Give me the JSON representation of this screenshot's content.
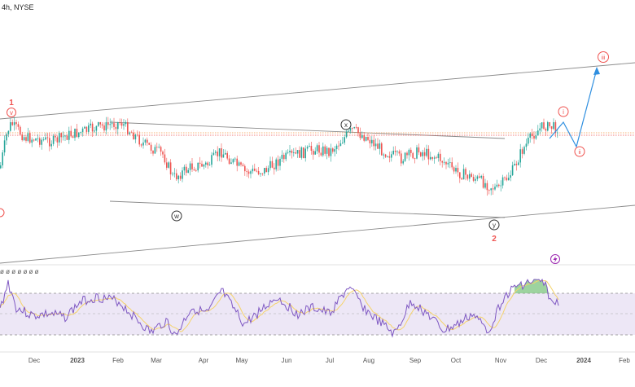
{
  "header": {
    "label": "4h, NYSE"
  },
  "colors": {
    "up": "#26a69a",
    "down": "#ef5350",
    "wave_red": "#ef5350",
    "wave_dark": "#333333",
    "projection": "#2f8fe0",
    "rsi_line": "#7e57c2",
    "rsi_ma": "#f5d36b",
    "rsi_band": "#ede7f6",
    "trendline": "#8a8a8a",
    "price_line": "#f2994a",
    "overbought_fill": "#7cc47f",
    "bolt": "#9c27b0"
  },
  "wave_labels": {
    "one": "1",
    "v": "v",
    "x": "x",
    "w": "w",
    "y": "y",
    "two": "2",
    "i": "i",
    "ii": "ii",
    "iii": "iii"
  },
  "rsi_header": {
    "values": "ø ø ø ø ø ø ø"
  },
  "icons": {
    "bolt": "lightning-icon"
  },
  "chart_data": {
    "type": "candlestick",
    "title": "4h, NYSE",
    "x_ticks": [
      "Dec",
      "2023",
      "Feb",
      "Mar",
      "Apr",
      "May",
      "Jun",
      "Jul",
      "Aug",
      "Sep",
      "Oct",
      "Nov",
      "Dec",
      "2024",
      "Feb"
    ],
    "price_path": [
      {
        "x": 0,
        "y": 0.45
      },
      {
        "x": 8,
        "y": 0.1
      },
      {
        "x": 13,
        "y": 0.01
      },
      {
        "x": 30,
        "y": 0.16
      },
      {
        "x": 65,
        "y": 0.2
      },
      {
        "x": 80,
        "y": 0.14
      },
      {
        "x": 100,
        "y": 0.1
      },
      {
        "x": 120,
        "y": 0.05
      },
      {
        "x": 148,
        "y": 0.0
      },
      {
        "x": 175,
        "y": 0.22
      },
      {
        "x": 200,
        "y": 0.34
      },
      {
        "x": 212,
        "y": 0.58
      },
      {
        "x": 235,
        "y": 0.46
      },
      {
        "x": 255,
        "y": 0.44
      },
      {
        "x": 270,
        "y": 0.3
      },
      {
        "x": 300,
        "y": 0.52
      },
      {
        "x": 325,
        "y": 0.5
      },
      {
        "x": 345,
        "y": 0.38
      },
      {
        "x": 362,
        "y": 0.34
      },
      {
        "x": 385,
        "y": 0.28
      },
      {
        "x": 405,
        "y": 0.3
      },
      {
        "x": 432,
        "y": 0.08
      },
      {
        "x": 450,
        "y": 0.16
      },
      {
        "x": 470,
        "y": 0.3
      },
      {
        "x": 492,
        "y": 0.38
      },
      {
        "x": 515,
        "y": 0.3
      },
      {
        "x": 540,
        "y": 0.38
      },
      {
        "x": 560,
        "y": 0.52
      },
      {
        "x": 582,
        "y": 0.58
      },
      {
        "x": 610,
        "y": 0.7
      },
      {
        "x": 628,
        "y": 0.52
      },
      {
        "x": 640,
        "y": 0.3
      },
      {
        "x": 655,
        "y": 0.12
      },
      {
        "x": 668,
        "y": 0.03
      },
      {
        "x": 685,
        "y": 0.06
      }
    ],
    "rsi_path": [
      {
        "x": 0,
        "y": 0.48
      },
      {
        "x": 10,
        "y": 0.05
      },
      {
        "x": 20,
        "y": 0.45
      },
      {
        "x": 40,
        "y": 0.58
      },
      {
        "x": 60,
        "y": 0.55
      },
      {
        "x": 80,
        "y": 0.6
      },
      {
        "x": 100,
        "y": 0.35
      },
      {
        "x": 120,
        "y": 0.28
      },
      {
        "x": 145,
        "y": 0.35
      },
      {
        "x": 165,
        "y": 0.6
      },
      {
        "x": 185,
        "y": 0.85
      },
      {
        "x": 205,
        "y": 0.65
      },
      {
        "x": 215,
        "y": 0.92
      },
      {
        "x": 235,
        "y": 0.45
      },
      {
        "x": 255,
        "y": 0.55
      },
      {
        "x": 272,
        "y": 0.18
      },
      {
        "x": 300,
        "y": 0.72
      },
      {
        "x": 320,
        "y": 0.5
      },
      {
        "x": 340,
        "y": 0.28
      },
      {
        "x": 365,
        "y": 0.55
      },
      {
        "x": 385,
        "y": 0.45
      },
      {
        "x": 405,
        "y": 0.55
      },
      {
        "x": 428,
        "y": 0.12
      },
      {
        "x": 450,
        "y": 0.5
      },
      {
        "x": 468,
        "y": 0.7
      },
      {
        "x": 485,
        "y": 0.88
      },
      {
        "x": 505,
        "y": 0.35
      },
      {
        "x": 525,
        "y": 0.55
      },
      {
        "x": 545,
        "y": 0.82
      },
      {
        "x": 565,
        "y": 0.7
      },
      {
        "x": 580,
        "y": 0.55
      },
      {
        "x": 600,
        "y": 0.82
      },
      {
        "x": 618,
        "y": 0.3
      },
      {
        "x": 635,
        "y": 0.1
      },
      {
        "x": 650,
        "y": 0.05
      },
      {
        "x": 668,
        "y": 0.02
      },
      {
        "x": 678,
        "y": 0.4
      },
      {
        "x": 686,
        "y": 0.35
      }
    ]
  }
}
